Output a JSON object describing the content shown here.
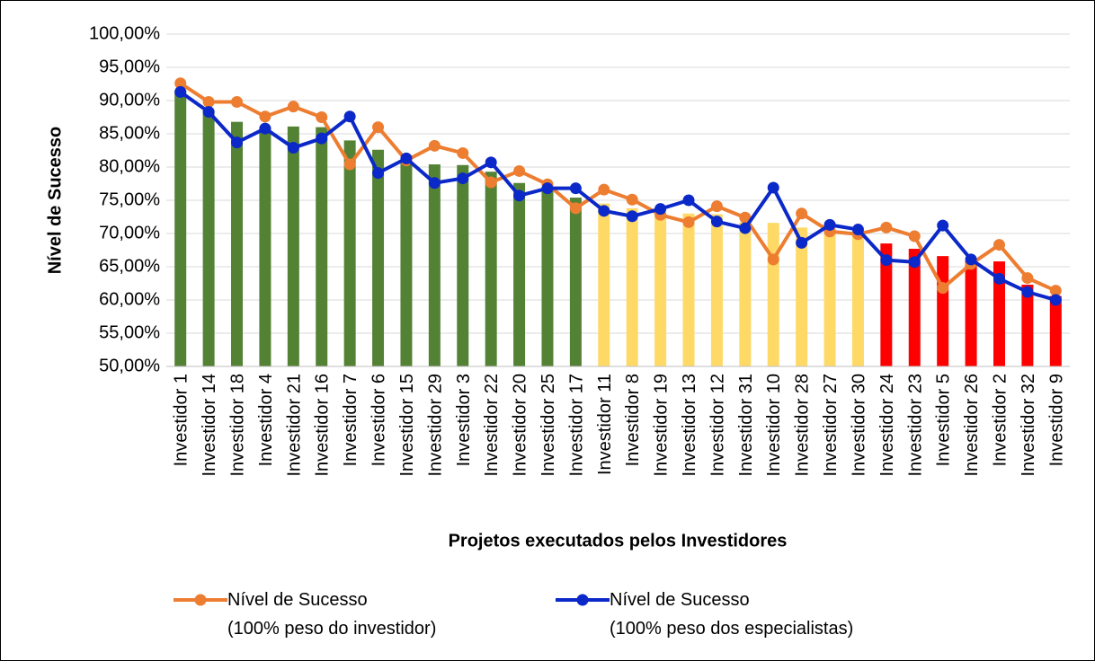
{
  "chart_data": {
    "type": "bar",
    "x_label": "Projetos executados pelos Investidores",
    "y_label": "Nível de Sucesso",
    "categories": [
      "Investidor 1",
      "Investidor 14",
      "Investidor 18",
      "Investidor 4",
      "Investidor 21",
      "Investidor 16",
      "Investidor 7",
      "Investidor 6",
      "Investidor 15",
      "Investidor 29",
      "Investidor 3",
      "Investidor 22",
      "Investidor 20",
      "Investidor 25",
      "Investidor 17",
      "Investidor 11",
      "Investidor 8",
      "Investidor 19",
      "Investidor 13",
      "Investidor 12",
      "Investidor 31",
      "Investidor 10",
      "Investidor 28",
      "Investidor 27",
      "Investidor 30",
      "Investidor 24",
      "Investidor 23",
      "Investidor 5",
      "Investidor 26",
      "Investidor 2",
      "Investidor 32",
      "Investidor 9"
    ],
    "series": [
      {
        "type": "bar",
        "values": [
          91.5,
          88.5,
          86.8,
          86.0,
          86.1,
          86.0,
          84.0,
          82.6,
          81.0,
          80.4,
          80.3,
          79.3,
          77.6,
          77.0,
          75.4,
          74.5,
          73.8,
          73.3,
          73.0,
          72.9,
          71.7,
          71.6,
          70.9,
          70.8,
          70.3,
          68.5,
          67.7,
          66.6,
          65.9,
          65.8,
          62.3,
          60.6
        ],
        "colors": [
          "#548235",
          "#548235",
          "#548235",
          "#548235",
          "#548235",
          "#548235",
          "#548235",
          "#548235",
          "#548235",
          "#548235",
          "#548235",
          "#548235",
          "#548235",
          "#548235",
          "#548235",
          "#ffd966",
          "#ffd966",
          "#ffd966",
          "#ffd966",
          "#ffd966",
          "#ffd966",
          "#ffd966",
          "#ffd966",
          "#ffd966",
          "#ffd966",
          "#ff0000",
          "#ff0000",
          "#ff0000",
          "#ff0000",
          "#ff0000",
          "#ff0000",
          "#ff0000"
        ]
      },
      {
        "type": "line",
        "name": "Nível de Sucesso\n(100% peso do investidor)",
        "color": "#ed7d31",
        "values": [
          92.6,
          89.8,
          89.8,
          87.6,
          89.1,
          87.5,
          80.4,
          86.0,
          81.0,
          83.2,
          82.1,
          77.7,
          79.4,
          77.4,
          73.8,
          76.6,
          75.1,
          72.8,
          71.7,
          74.1,
          72.4,
          66.1,
          73.0,
          70.3,
          69.9,
          70.9,
          69.6,
          61.8,
          65.4,
          68.3,
          63.3,
          61.4
        ]
      },
      {
        "type": "line",
        "name": "Nível de Sucesso\n(100% peso dos especialistas)",
        "color": "#0b28c8",
        "values": [
          91.3,
          88.3,
          83.7,
          85.8,
          82.9,
          84.3,
          87.6,
          79.1,
          81.3,
          77.6,
          78.3,
          80.7,
          75.7,
          76.8,
          76.8,
          73.4,
          72.6,
          73.7,
          75.0,
          71.8,
          70.8,
          76.9,
          68.6,
          71.3,
          70.6,
          66.0,
          65.7,
          71.2,
          66.1,
          63.2,
          61.2,
          60.0
        ]
      }
    ],
    "ylim": [
      50,
      100
    ],
    "yticks": [
      {
        "value": 50,
        "label": "50,00%"
      },
      {
        "value": 55,
        "label": "55,00%"
      },
      {
        "value": 60,
        "label": "60,00%"
      },
      {
        "value": 65,
        "label": "65,00%"
      },
      {
        "value": 70,
        "label": "70,00%"
      },
      {
        "value": 75,
        "label": "75,00%"
      },
      {
        "value": 80,
        "label": "80,00%"
      },
      {
        "value": 85,
        "label": "85,00%"
      },
      {
        "value": 90,
        "label": "90,00%"
      },
      {
        "value": 95,
        "label": "95,00%"
      },
      {
        "value": 100,
        "label": "100,00%"
      }
    ],
    "grid": true,
    "legend": "bottom"
  }
}
